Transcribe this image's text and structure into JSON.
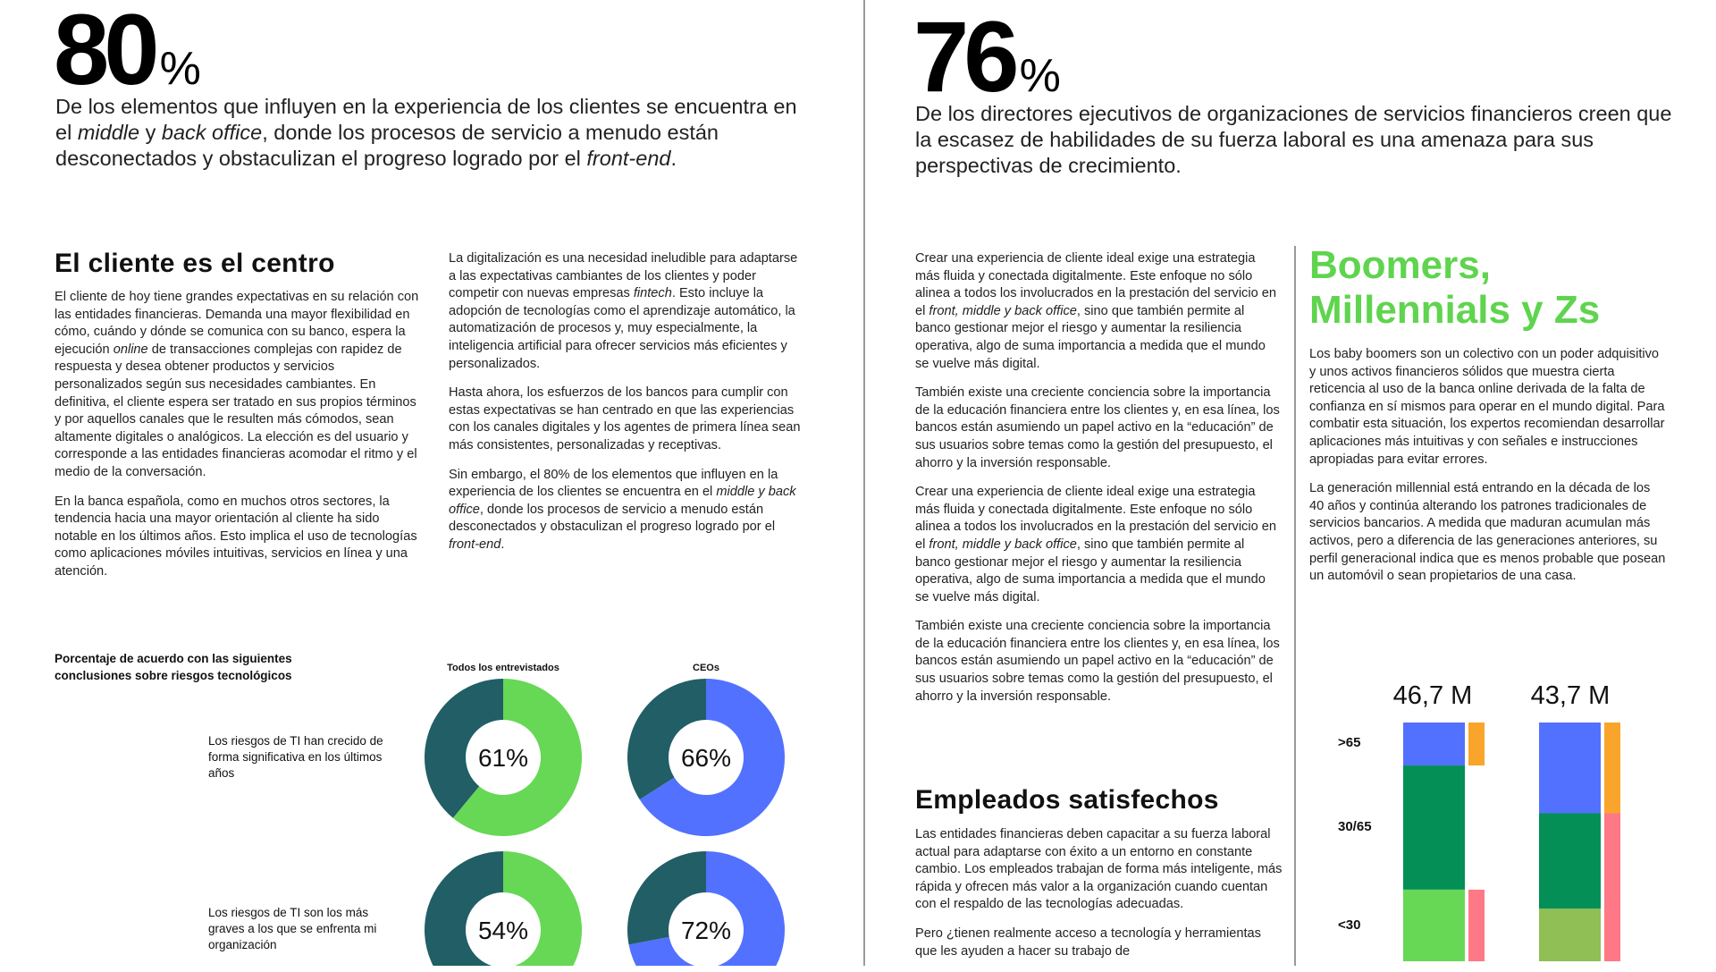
{
  "left_stat": {
    "number": "80",
    "unit": "%",
    "text": [
      [
        "De los elementos que influyen en la experiencia de los clientes se encuentra en el "
      ],
      [
        "middle",
        1
      ],
      [
        " y "
      ],
      [
        "back office",
        1
      ],
      [
        ", donde los procesos de servicio a menudo están desconectados y obstaculizan el progreso logrado por el "
      ],
      [
        "front-end",
        1
      ],
      [
        "."
      ]
    ]
  },
  "right_stat": {
    "number": "76",
    "unit": "%",
    "text": [
      [
        "De los directores ejecutivos de organizaciones de servicios financieros creen que la escasez de habilidades de su fuerza laboral es una amenaza para sus perspectivas de crecimiento."
      ]
    ]
  },
  "section1": {
    "title": "El cliente es el centro",
    "col1": [
      [
        [
          "El cliente de hoy tiene grandes expectativas en su relación con las entidades financieras. Demanda una mayor flexibilidad en cómo, cuándo y dónde se comunica con su banco, espera la ejecución "
        ],
        [
          "online",
          1
        ],
        [
          " de transacciones complejas con rapidez de respuesta y desea obtener productos y servicios personalizados según sus necesidades cambiantes. En definitiva, el cliente espera ser tratado en sus propios términos y por aquellos canales que le resulten más cómodos, sean altamente digitales o analógicos. La elección es del usuario y corresponde a las entidades financieras acomodar el ritmo y el medio de la conversación."
        ]
      ],
      [
        [
          "En la banca española, como en muchos otros sectores, la tendencia hacia una mayor orientación al cliente ha sido notable en los últimos años. Esto implica el uso de tecnologías como aplicaciones móviles intuitivas, servicios en línea y una atención."
        ]
      ]
    ],
    "col2": [
      [
        [
          "La digitalización es una necesidad ineludible para adaptarse a las expectativas cambiantes de los clientes y poder competir con nuevas empresas "
        ],
        [
          "fintech",
          1
        ],
        [
          ". Esto incluye la adopción de tecnologías como el aprendizaje automático, la automatización de procesos y, muy especialmente, la inteligencia artificial para ofrecer servicios más eficientes y personalizados."
        ]
      ],
      [
        [
          "Hasta ahora, los esfuerzos de los bancos para cumplir con estas expectativas se han centrado en que las experiencias con los canales digitales y los agentes de primera línea sean más consistentes, personalizadas y receptivas."
        ]
      ],
      [
        [
          "Sin embargo, el 80% de los elementos que influyen en la experiencia de los clientes se encuentra en el "
        ],
        [
          "middle y back office",
          1
        ],
        [
          ", donde los procesos de servicio a menudo están desconectados y obstaculizan el progreso logrado por el "
        ],
        [
          "front-end",
          1
        ],
        [
          "."
        ]
      ]
    ]
  },
  "col3": [
    [
      [
        "Crear una experiencia de cliente ideal exige una estrategia más fluida y conectada digitalmente. Este enfoque no sólo alinea a todos los involucrados en la prestación del servicio en el "
      ],
      [
        "front, middle y back office",
        1
      ],
      [
        ", sino que también permite al banco gestionar mejor el riesgo y aumentar la resiliencia operativa, algo de suma importancia a medida que el mundo se vuelve más digital."
      ]
    ],
    [
      [
        "También existe una creciente conciencia sobre la importancia de la educación financiera entre los clientes y, en esa línea, los bancos están asumiendo un papel activo en la “educación” de sus usuarios sobre temas como la gestión del presupuesto, el ahorro y la inversión responsable."
      ]
    ],
    [
      [
        "Crear una experiencia de cliente ideal exige una estrategia más fluida y conectada digitalmente. Este enfoque no sólo alinea a todos los involucrados en la prestación del servicio en el "
      ],
      [
        "front, middle y back office",
        1
      ],
      [
        ", sino que también permite al banco gestionar mejor el riesgo y aumentar la resiliencia operativa, algo de suma importancia a medida que el mundo se vuelve más digital."
      ]
    ],
    [
      [
        "También existe una creciente conciencia sobre la importancia de la educación financiera entre los clientes y, en esa línea, los bancos están asumiendo un papel activo en la “educación” de sus usuarios sobre temas como la gestión del presupuesto, el ahorro y la inversión responsable."
      ]
    ]
  ],
  "section2": {
    "title": "Empleados satisfechos",
    "paras": [
      [
        [
          "Las entidades financieras deben capacitar a su fuerza laboral actual para adaptarse con éxito a un entorno en constante cambio. Los empleados trabajan de forma más inteligente, más rápida y ofrecen más valor a la organización cuando cuentan con el respaldo de las tecnologías adecuadas."
        ]
      ],
      [
        [
          "Pero ¿tienen realmente acceso a tecnología y herramientas que les ayuden a hacer su trabajo de"
        ]
      ]
    ]
  },
  "section3": {
    "title_line1": "Boomers,",
    "title_line2": "Millennials y Zs",
    "paras": [
      [
        [
          "Los baby boomers son un colectivo con un poder adquisitivo y unos activos financieros sólidos que muestra cierta reticencia al uso de la banca online derivada de la falta de confianza en sí mismos para operar en el mundo digital. Para combatir esta situación, los expertos recomiendan desarrollar aplicaciones más intuitivas y con señales e instrucciones apropiadas para evitar errores."
        ]
      ],
      [
        [
          "La generación millennial está entrando en la década de los 40 años y continúa alterando los patrones tradicionales de servicios bancarios. A medida que maduran acumulan más activos, pero a diferencia de las generaciones anteriores, su perfil generacional indica que es menos probable que posean un automóvil o sean propietarios de una casa."
        ]
      ]
    ]
  },
  "colors": {
    "teal": "#215e66",
    "green": "#66d855",
    "blue": "#5271ff",
    "darkgreen": "#038f56",
    "orange": "#f9a52b",
    "pink": "#fe7885",
    "olive": "#8fbf55",
    "heading_green": "#5fd44e"
  },
  "chart_data": [
    {
      "type": "pie",
      "title": "Porcentaje de acuerdo con las siguientes conclusiones sobre riesgos tecnológicos",
      "columns": [
        "Todos los entrevistados",
        "CEOs"
      ],
      "rows": [
        {
          "label": "Los riesgos de TI han crecido de forma significativa en los últimos años",
          "values": [
            61,
            66
          ],
          "labels": [
            "61%",
            "66%"
          ]
        },
        {
          "label": "Los riesgos de TI son los más graves a los que se enfrenta mi organización",
          "values": [
            54,
            72
          ],
          "labels": [
            "54%",
            "72%"
          ]
        }
      ]
    },
    {
      "type": "bar",
      "stacked": true,
      "categories": [
        ">65",
        "30/65",
        "<30"
      ],
      "totals": [
        "46,7 M",
        "43,7 M"
      ],
      "bars": [
        {
          "segments": [
            18,
            52,
            30
          ],
          "colors": [
            "#5271ff",
            "#038f56",
            "#66d855"
          ],
          "side": [
            {
              "from": 0,
              "to": 18,
              "color": "#f9a52b"
            },
            {
              "from": 70,
              "to": 100,
              "color": "#fe7885"
            }
          ]
        },
        {
          "segments": [
            38,
            40,
            22
          ],
          "colors": [
            "#5271ff",
            "#038f56",
            "#8fbf55"
          ],
          "side": [
            {
              "from": 0,
              "to": 38,
              "color": "#f9a52b"
            },
            {
              "from": 38,
              "to": 100,
              "color": "#fe7885"
            }
          ]
        }
      ]
    }
  ]
}
